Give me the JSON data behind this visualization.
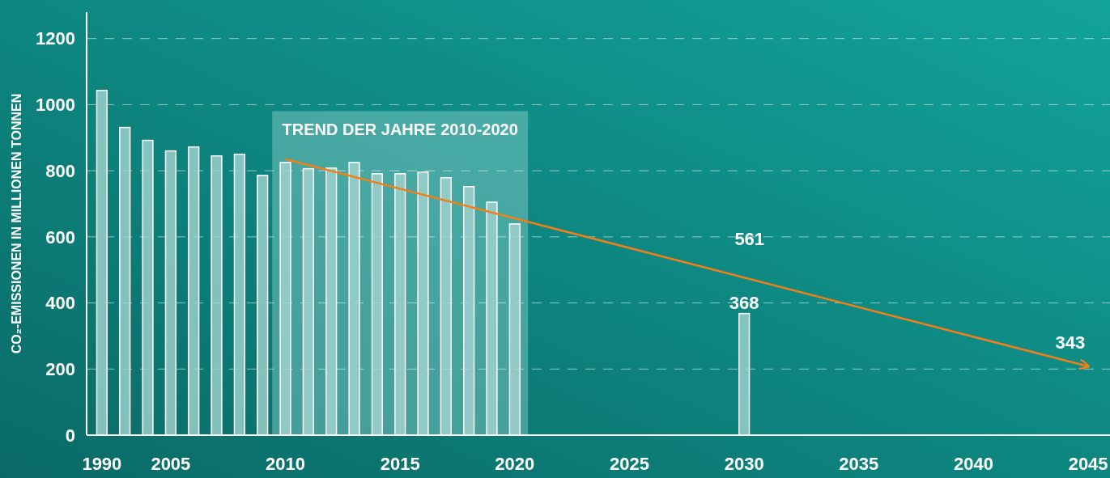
{
  "chart_data": {
    "type": "bar",
    "ylabel": "CO₂-EMISSIONEN IN MILLIONEN TONNEN",
    "categories": [
      "1990",
      null,
      null,
      "2005",
      null,
      null,
      null,
      null,
      "2010",
      null,
      null,
      null,
      null,
      "2015",
      null,
      null,
      null,
      null,
      "2020",
      null,
      null,
      null,
      null,
      "2025",
      null,
      null,
      null,
      null,
      "2030",
      null,
      null,
      null,
      null,
      "2035",
      null,
      null,
      null,
      null,
      "2040",
      null,
      null,
      null,
      null,
      "2045"
    ],
    "series": [
      {
        "color": "#a3d3cf",
        "values": [
          1043,
          931,
          892,
          860,
          872,
          845,
          850,
          786,
          825,
          806,
          808,
          825,
          791,
          791,
          796,
          779,
          752,
          705,
          639,
          null,
          null,
          null,
          null,
          null,
          null,
          null,
          null,
          null,
          368,
          null,
          null,
          null,
          null,
          null,
          null,
          null,
          null,
          null,
          null,
          null,
          null,
          null,
          null,
          null
        ],
        "value_labels": [
          null,
          null,
          null,
          null,
          null,
          null,
          null,
          null,
          null,
          null,
          null,
          null,
          null,
          null,
          null,
          null,
          null,
          null,
          null,
          null,
          null,
          null,
          null,
          null,
          null,
          null,
          null,
          null,
          "368",
          null,
          null,
          null,
          null,
          null,
          null,
          null,
          null,
          null,
          null,
          null,
          null,
          null,
          null,
          null
        ]
      },
      {
        "type": "line",
        "color": "#f07f1a",
        "values": [
          null,
          null,
          null,
          null,
          null,
          null,
          null,
          null,
          835,
          null,
          null,
          null,
          null,
          null,
          null,
          null,
          null,
          null,
          null,
          null,
          null,
          null,
          null,
          null,
          null,
          null,
          null,
          null,
          null,
          null,
          null,
          null,
          null,
          null,
          null,
          null,
          null,
          null,
          null,
          null,
          null,
          null,
          null,
          208
        ]
      }
    ],
    "bands": [
      {
        "axis": "x",
        "from": "2010",
        "to": "2020",
        "label": "TREND DER JAHRE 2010-2020",
        "color": "#8fd0cb"
      }
    ],
    "annotations": [
      "561",
      "343"
    ],
    "ylim": [
      0,
      1280
    ],
    "yticks": [
      0,
      200,
      400,
      600,
      800,
      1000,
      1200
    ],
    "grid": "y"
  }
}
